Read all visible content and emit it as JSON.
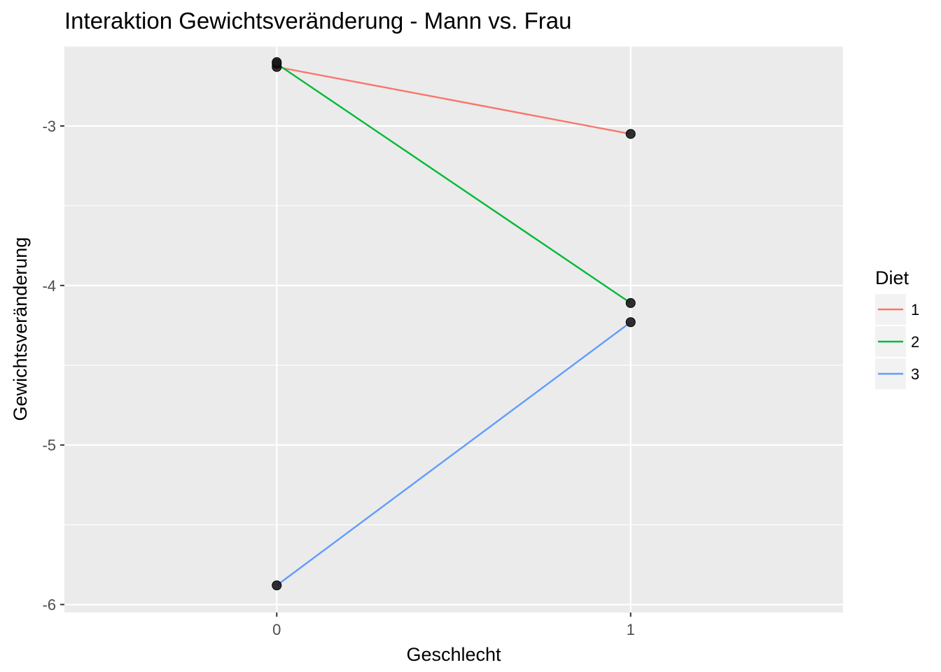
{
  "chart_data": {
    "type": "line",
    "title": "Interaktion Gewichtsveränderung - Mann vs. Frau",
    "xlabel": "Geschlecht",
    "ylabel": "Gewichtsveränderung",
    "categories": [
      "0",
      "1"
    ],
    "y_ticks": [
      -3,
      -4,
      -5,
      -6
    ],
    "ylim": [
      -6.05,
      -2.5
    ],
    "grid": true,
    "legend": {
      "title": "Diet",
      "placement": "right"
    },
    "series": [
      {
        "name": "1",
        "color": "#F8766D",
        "values": [
          -2.63,
          -3.05
        ]
      },
      {
        "name": "2",
        "color": "#00BA38",
        "values": [
          -2.61,
          -4.11
        ]
      },
      {
        "name": "3",
        "color": "#619CFF",
        "values": [
          -5.88,
          -4.23
        ]
      }
    ],
    "extra_points": [
      {
        "x": "0",
        "y": -2.6
      }
    ],
    "point_color": "#1a1a1a"
  }
}
